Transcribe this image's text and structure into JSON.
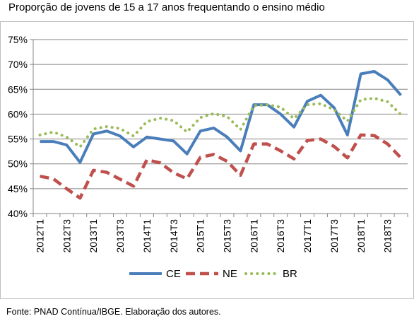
{
  "title": "Proporção de jovens de 15 a 17 anos frequentando o ensino médio",
  "source": "Fonte: PNAD Contínua/IBGE. Elaboração dos autores.",
  "colors": {
    "CE": "#4a7ebb",
    "NE": "#c0504d",
    "BR": "#9bbb59",
    "axis": "#868686",
    "grid": "#868686"
  },
  "chart_data": {
    "type": "line",
    "title": "Proporção de jovens de 15 a 17 anos frequentando o ensino médio",
    "xlabel": "",
    "ylabel": "",
    "ylim": [
      40,
      75
    ],
    "yticks": [
      "40%",
      "45%",
      "50%",
      "55%",
      "60%",
      "65%",
      "70%",
      "75%"
    ],
    "grid": true,
    "legend": "bottom",
    "x": [
      "2012T1",
      "2012T2",
      "2012T3",
      "2012T4",
      "2013T1",
      "2013T2",
      "2013T3",
      "2013T4",
      "2014T1",
      "2014T2",
      "2014T3",
      "2014T4",
      "2015T1",
      "2015T2",
      "2015T3",
      "2015T4",
      "2016T1",
      "2016T2",
      "2016T3",
      "2016T4",
      "2017T1",
      "2017T2",
      "2017T3",
      "2017T4",
      "2018T1",
      "2018T2",
      "2018T3",
      "2018T4"
    ],
    "x_tick_labels": [
      "2012T1",
      "2012T3",
      "2013T1",
      "2013T3",
      "2014T1",
      "2014T3",
      "2015T1",
      "2015T3",
      "2016T1",
      "2016T3",
      "2017T1",
      "2017T3",
      "2018T1",
      "2018T3"
    ],
    "series": [
      {
        "name": "CE",
        "style": "solid",
        "values": [
          54.5,
          54.5,
          53.8,
          50.3,
          56.0,
          56.6,
          55.6,
          53.4,
          55.4,
          55.0,
          54.6,
          52.0,
          56.6,
          57.2,
          55.4,
          52.6,
          61.9,
          61.9,
          60.0,
          57.4,
          62.6,
          63.8,
          61.3,
          55.8,
          68.1,
          68.6,
          66.9,
          63.8
        ]
      },
      {
        "name": "NE",
        "style": "dashed",
        "values": [
          47.5,
          47.0,
          45.0,
          43.1,
          48.7,
          48.3,
          46.9,
          45.5,
          50.8,
          50.2,
          48.2,
          47.0,
          51.3,
          51.9,
          50.5,
          47.7,
          54.0,
          54.0,
          52.6,
          51.0,
          54.7,
          55.0,
          53.5,
          51.2,
          55.8,
          55.7,
          54.0,
          51.2
        ]
      },
      {
        "name": "BR",
        "style": "dotted",
        "values": [
          55.8,
          56.4,
          55.4,
          53.4,
          57.0,
          57.5,
          57.1,
          55.6,
          58.5,
          59.2,
          58.7,
          56.4,
          59.3,
          60.1,
          59.5,
          56.9,
          61.7,
          61.9,
          61.4,
          59.1,
          61.9,
          62.1,
          60.9,
          58.6,
          62.9,
          63.2,
          62.5,
          59.9
        ]
      }
    ]
  }
}
